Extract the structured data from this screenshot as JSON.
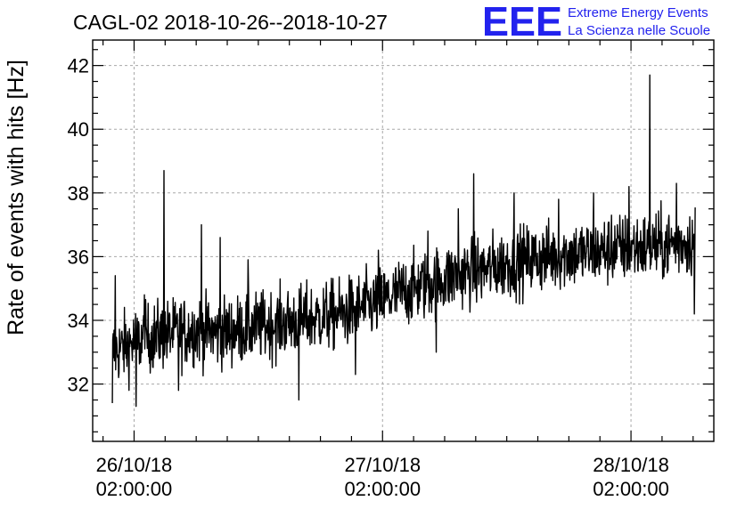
{
  "chart_data": {
    "type": "line",
    "title": "CAGL-02 2018-10-26--2018-10-27",
    "ylabel": "Rate of events with hits [Hz]",
    "xlabel": "",
    "ylim": [
      30.2,
      42.8
    ],
    "y_ticks": [
      32,
      34,
      36,
      38,
      40,
      42
    ],
    "x_ticks": [
      {
        "date": "26/10/18",
        "time": "02:00:00"
      },
      {
        "date": "27/10/18",
        "time": "02:00:00"
      },
      {
        "date": "28/10/18",
        "time": "02:00:00"
      }
    ],
    "xlim_hours_from_2018_10_25_22h": [
      0,
      60
    ],
    "grid": true,
    "series": [
      {
        "sampled_hours": [
          1.9,
          4,
          6,
          8,
          10,
          12,
          14,
          16,
          18,
          20,
          22,
          24,
          26,
          28,
          30,
          32,
          34,
          36,
          38,
          40,
          42,
          44,
          46,
          48,
          50,
          52,
          54,
          56,
          58.2
        ],
        "sampled_values": [
          33.0,
          33.3,
          33.5,
          33.6,
          33.7,
          33.6,
          33.7,
          33.8,
          33.9,
          34.0,
          34.1,
          34.2,
          34.4,
          34.6,
          34.9,
          35.1,
          35.3,
          35.5,
          35.6,
          35.8,
          35.9,
          36.0,
          36.1,
          36.1,
          36.2,
          36.3,
          36.3,
          36.4,
          36.5
        ],
        "spikes": [
          {
            "hour": 2.2,
            "value": 35.4
          },
          {
            "hour": 5.0,
            "value": 34.8
          },
          {
            "hour": 6.9,
            "value": 38.7
          },
          {
            "hour": 10.5,
            "value": 37.0
          },
          {
            "hour": 12.3,
            "value": 36.6
          },
          {
            "hour": 15.0,
            "value": 35.9
          },
          {
            "hour": 27.6,
            "value": 36.2
          },
          {
            "hour": 32.4,
            "value": 36.8
          },
          {
            "hour": 35.3,
            "value": 37.5
          },
          {
            "hour": 36.8,
            "value": 38.6
          },
          {
            "hour": 40.7,
            "value": 38.0
          },
          {
            "hour": 45.0,
            "value": 37.8
          },
          {
            "hour": 48.4,
            "value": 38.0
          },
          {
            "hour": 50.1,
            "value": 37.3
          },
          {
            "hour": 51.8,
            "value": 38.2
          },
          {
            "hour": 53.8,
            "value": 41.7
          },
          {
            "hour": 56.4,
            "value": 38.3
          }
        ],
        "dips": [
          {
            "hour": 1.9,
            "value": 31.4
          },
          {
            "hour": 4.2,
            "value": 31.3
          },
          {
            "hour": 8.3,
            "value": 31.8
          },
          {
            "hour": 19.9,
            "value": 31.5
          },
          {
            "hour": 25.4,
            "value": 32.3
          },
          {
            "hour": 33.2,
            "value": 33.0
          },
          {
            "hour": 58.1,
            "value": 34.2
          }
        ]
      }
    ]
  },
  "logo": {
    "letters": "EEE",
    "line1": "Extreme Energy Events",
    "line2": "La Scienza nelle Scuole",
    "color": "#2222ee"
  }
}
